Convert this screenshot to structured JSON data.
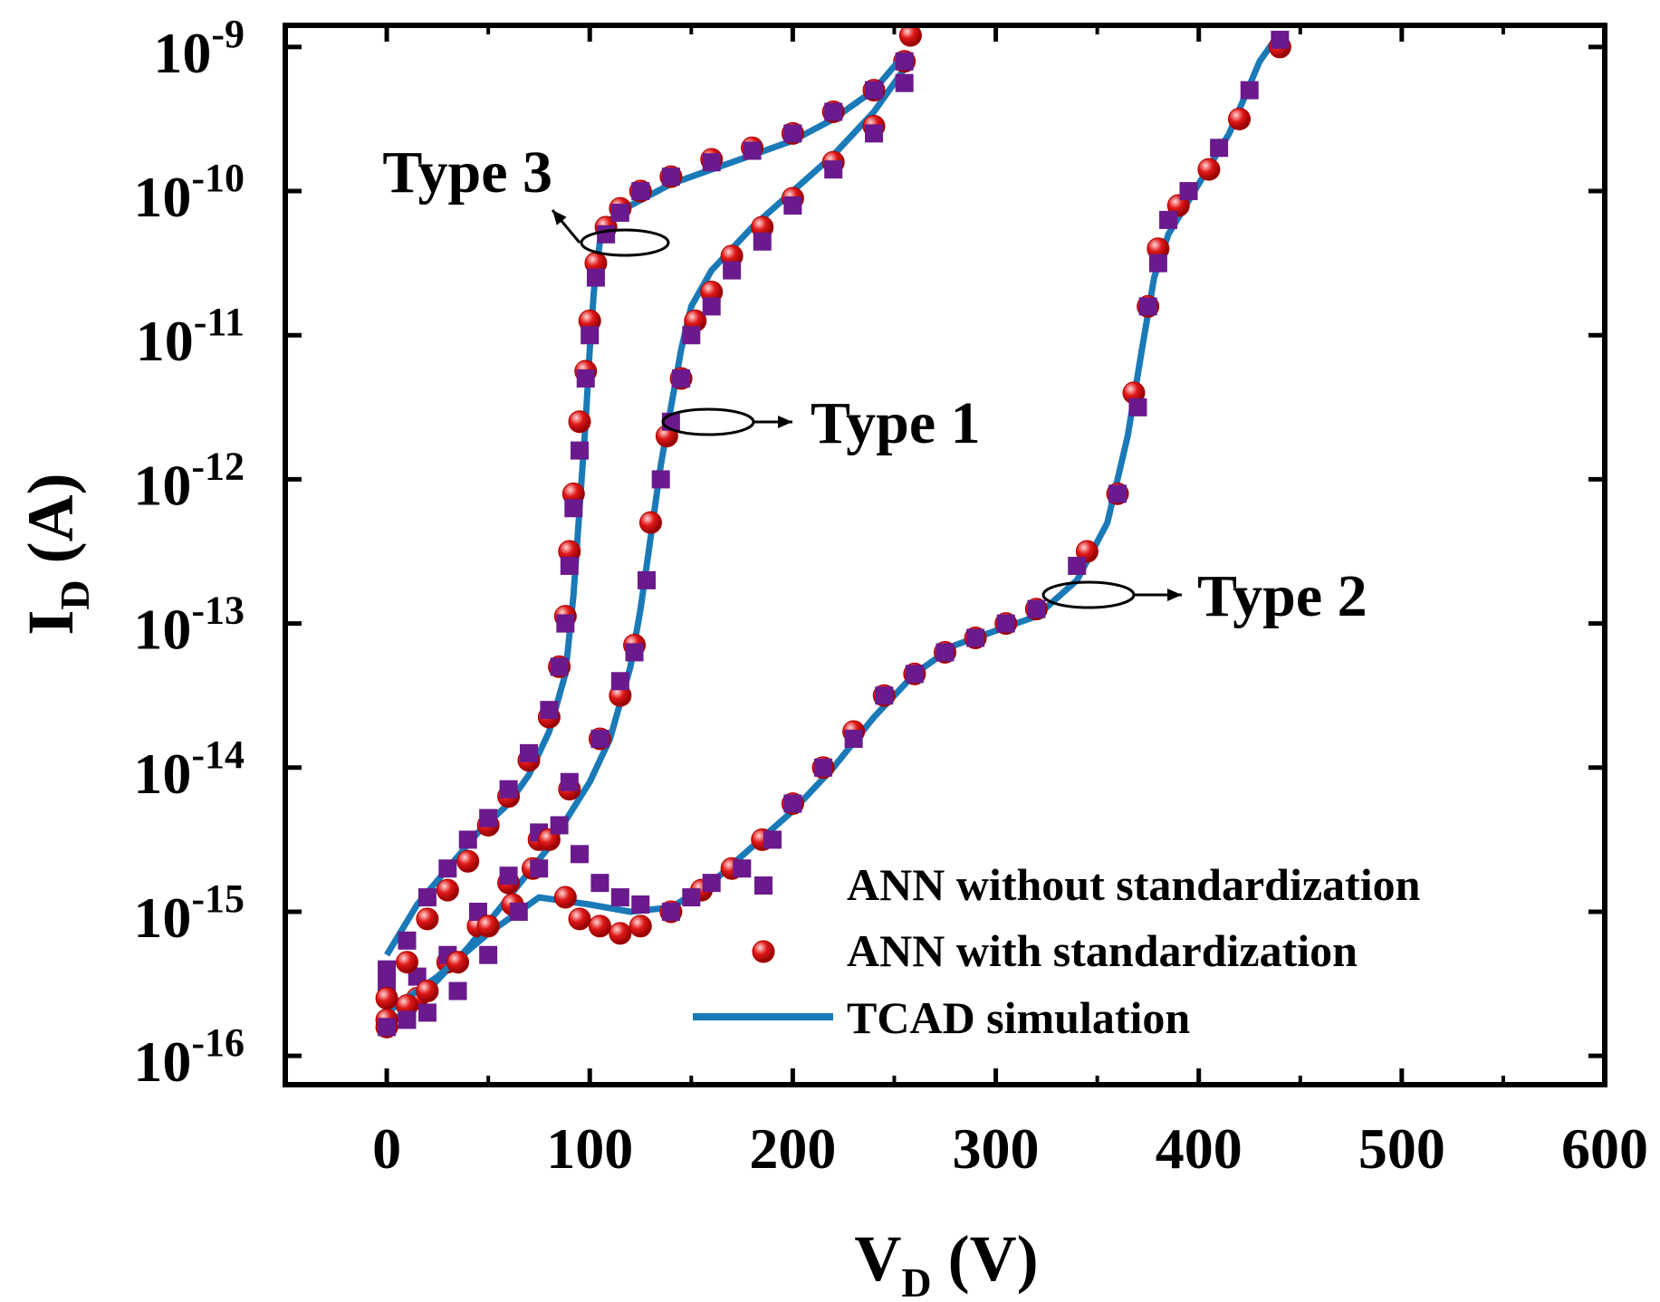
{
  "chart_data": {
    "type": "scatter",
    "title": "",
    "xlabel": {
      "main": "V",
      "sub": "D",
      "unit": " (V)"
    },
    "ylabel": {
      "main": "I",
      "sub": "D",
      "unit": " (A)"
    },
    "xlim": [
      -50,
      600
    ],
    "ylim_log10": [
      -16.2,
      -8.85
    ],
    "yscale": "log",
    "grid": false,
    "legend_position": "bottom-right",
    "x_ticks": [
      0,
      100,
      200,
      300,
      400,
      500,
      600
    ],
    "x_tick_labels": [
      "0",
      "100",
      "200",
      "300",
      "400",
      "500",
      "600"
    ],
    "y_ticks": [
      {
        "exp": -16,
        "base": "10",
        "sup": "-16"
      },
      {
        "exp": -15,
        "base": "10",
        "sup": "-15"
      },
      {
        "exp": -14,
        "base": "10",
        "sup": "-14"
      },
      {
        "exp": -13,
        "base": "10",
        "sup": "-13"
      },
      {
        "exp": -12,
        "base": "10",
        "sup": "-12"
      },
      {
        "exp": -11,
        "base": "10",
        "sup": "-11"
      },
      {
        "exp": -10,
        "base": "10",
        "sup": "-10"
      },
      {
        "exp": -9,
        "base": "10",
        "sup": "-9"
      }
    ],
    "colors": {
      "ann_without": "#6a1a8c",
      "ann_with": "#e01818",
      "tcad": "#1a7ab8"
    },
    "legend": [
      {
        "key": "ann_without",
        "label": "ANN without standardization",
        "marker": "square"
      },
      {
        "key": "ann_with",
        "label": "ANN with standardization",
        "marker": "circle"
      },
      {
        "key": "tcad",
        "label": "TCAD simulation",
        "marker": "line"
      }
    ],
    "annotations": [
      {
        "label": "Type 3",
        "target": [
          118,
          -10.2
        ]
      },
      {
        "label": "Type 1",
        "target": [
          150,
          -11.55
        ]
      },
      {
        "label": "Type 2",
        "target": [
          345,
          -12.9
        ]
      }
    ],
    "series": [
      {
        "name": "Type 1",
        "tcad": [
          [
            0,
            -15.8
          ],
          [
            20,
            -15.55
          ],
          [
            40,
            -15.25
          ],
          [
            60,
            -14.9
          ],
          [
            80,
            -14.55
          ],
          [
            100,
            -14.1
          ],
          [
            110,
            -13.8
          ],
          [
            120,
            -13.3
          ],
          [
            125,
            -12.9
          ],
          [
            130,
            -12.4
          ],
          [
            135,
            -11.9
          ],
          [
            140,
            -11.5
          ],
          [
            145,
            -11.1
          ],
          [
            150,
            -10.8
          ],
          [
            160,
            -10.55
          ],
          [
            180,
            -10.25
          ],
          [
            200,
            -10.0
          ],
          [
            220,
            -9.75
          ],
          [
            240,
            -9.45
          ],
          [
            255,
            -9.15
          ]
        ],
        "ann_without": [
          [
            0,
            -15.5
          ],
          [
            15,
            -15.45
          ],
          [
            30,
            -15.3
          ],
          [
            45,
            -15.0
          ],
          [
            60,
            -14.75
          ],
          [
            75,
            -14.45
          ],
          [
            90,
            -14.1
          ],
          [
            105,
            -13.8
          ],
          [
            115,
            -13.4
          ],
          [
            122,
            -13.2
          ],
          [
            128,
            -12.7
          ],
          [
            135,
            -12.0
          ],
          [
            140,
            -11.6
          ],
          [
            145,
            -11.3
          ],
          [
            150,
            -11.0
          ],
          [
            160,
            -10.8
          ],
          [
            170,
            -10.55
          ],
          [
            185,
            -10.35
          ],
          [
            200,
            -10.1
          ],
          [
            220,
            -9.85
          ],
          [
            240,
            -9.6
          ],
          [
            255,
            -9.25
          ]
        ],
        "ann_with": [
          [
            0,
            -15.8
          ],
          [
            15,
            -15.6
          ],
          [
            30,
            -15.35
          ],
          [
            45,
            -15.1
          ],
          [
            60,
            -14.8
          ],
          [
            75,
            -14.5
          ],
          [
            90,
            -14.15
          ],
          [
            105,
            -13.8
          ],
          [
            115,
            -13.5
          ],
          [
            122,
            -13.15
          ],
          [
            130,
            -12.3
          ],
          [
            138,
            -11.7
          ],
          [
            145,
            -11.3
          ],
          [
            152,
            -10.9
          ],
          [
            160,
            -10.7
          ],
          [
            170,
            -10.45
          ],
          [
            185,
            -10.25
          ],
          [
            200,
            -10.05
          ],
          [
            220,
            -9.8
          ],
          [
            240,
            -9.55
          ],
          [
            255,
            -9.1
          ]
        ]
      },
      {
        "name": "Type 2",
        "tcad": [
          [
            0,
            -15.7
          ],
          [
            25,
            -15.45
          ],
          [
            50,
            -15.15
          ],
          [
            75,
            -14.9
          ],
          [
            100,
            -14.95
          ],
          [
            120,
            -15.0
          ],
          [
            140,
            -14.97
          ],
          [
            160,
            -14.8
          ],
          [
            180,
            -14.55
          ],
          [
            200,
            -14.3
          ],
          [
            220,
            -14.0
          ],
          [
            240,
            -13.65
          ],
          [
            260,
            -13.35
          ],
          [
            280,
            -13.15
          ],
          [
            300,
            -13.05
          ],
          [
            320,
            -12.95
          ],
          [
            340,
            -12.7
          ],
          [
            355,
            -12.3
          ],
          [
            365,
            -11.7
          ],
          [
            372,
            -11.1
          ],
          [
            378,
            -10.6
          ],
          [
            385,
            -10.3
          ],
          [
            400,
            -9.95
          ],
          [
            415,
            -9.6
          ],
          [
            430,
            -9.1
          ],
          [
            440,
            -8.9
          ]
        ],
        "ann_without": [
          [
            0,
            -15.8
          ],
          [
            10,
            -15.75
          ],
          [
            20,
            -15.7
          ],
          [
            35,
            -15.55
          ],
          [
            50,
            -15.3
          ],
          [
            65,
            -15.0
          ],
          [
            75,
            -14.7
          ],
          [
            85,
            -14.4
          ],
          [
            95,
            -14.6
          ],
          [
            105,
            -14.8
          ],
          [
            115,
            -14.9
          ],
          [
            125,
            -14.95
          ],
          [
            140,
            -15.0
          ],
          [
            150,
            -14.9
          ],
          [
            160,
            -14.8
          ],
          [
            175,
            -14.7
          ],
          [
            190,
            -14.5
          ],
          [
            200,
            -14.25
          ],
          [
            215,
            -14.0
          ],
          [
            230,
            -13.8
          ],
          [
            245,
            -13.5
          ],
          [
            260,
            -13.35
          ],
          [
            275,
            -13.2
          ],
          [
            290,
            -13.1
          ],
          [
            305,
            -13.0
          ],
          [
            320,
            -12.9
          ],
          [
            340,
            -12.6
          ],
          [
            360,
            -12.1
          ],
          [
            370,
            -11.5
          ],
          [
            375,
            -10.8
          ],
          [
            380,
            -10.5
          ],
          [
            385,
            -10.2
          ],
          [
            395,
            -10.0
          ],
          [
            410,
            -9.7
          ],
          [
            425,
            -9.3
          ],
          [
            440,
            -8.95
          ]
        ],
        "ann_with": [
          [
            0,
            -15.75
          ],
          [
            10,
            -15.65
          ],
          [
            20,
            -15.55
          ],
          [
            35,
            -15.35
          ],
          [
            50,
            -15.1
          ],
          [
            62,
            -14.95
          ],
          [
            72,
            -14.7
          ],
          [
            80,
            -14.5
          ],
          [
            88,
            -14.9
          ],
          [
            95,
            -15.05
          ],
          [
            105,
            -15.1
          ],
          [
            115,
            -15.15
          ],
          [
            125,
            -15.1
          ],
          [
            140,
            -15.0
          ],
          [
            155,
            -14.85
          ],
          [
            170,
            -14.7
          ],
          [
            185,
            -14.5
          ],
          [
            200,
            -14.25
          ],
          [
            215,
            -14.0
          ],
          [
            230,
            -13.75
          ],
          [
            245,
            -13.5
          ],
          [
            260,
            -13.35
          ],
          [
            275,
            -13.2
          ],
          [
            290,
            -13.1
          ],
          [
            305,
            -13.0
          ],
          [
            320,
            -12.9
          ],
          [
            345,
            -12.5
          ],
          [
            360,
            -12.1
          ],
          [
            368,
            -11.4
          ],
          [
            375,
            -10.8
          ],
          [
            380,
            -10.4
          ],
          [
            390,
            -10.1
          ],
          [
            405,
            -9.85
          ],
          [
            420,
            -9.5
          ],
          [
            440,
            -9.0
          ]
        ]
      },
      {
        "name": "Type 3",
        "tcad": [
          [
            0,
            -15.3
          ],
          [
            15,
            -14.95
          ],
          [
            30,
            -14.7
          ],
          [
            45,
            -14.45
          ],
          [
            60,
            -14.25
          ],
          [
            70,
            -14.05
          ],
          [
            80,
            -13.75
          ],
          [
            88,
            -13.35
          ],
          [
            92,
            -12.8
          ],
          [
            95,
            -12.2
          ],
          [
            98,
            -11.6
          ],
          [
            100,
            -11.1
          ],
          [
            102,
            -10.7
          ],
          [
            105,
            -10.35
          ],
          [
            110,
            -10.2
          ],
          [
            120,
            -10.1
          ],
          [
            140,
            -9.95
          ],
          [
            160,
            -9.85
          ],
          [
            180,
            -9.75
          ],
          [
            200,
            -9.65
          ],
          [
            220,
            -9.5
          ],
          [
            240,
            -9.3
          ],
          [
            255,
            -9.05
          ]
        ],
        "ann_without": [
          [
            0,
            -15.4
          ],
          [
            10,
            -15.2
          ],
          [
            20,
            -14.9
          ],
          [
            30,
            -14.7
          ],
          [
            40,
            -14.5
          ],
          [
            50,
            -14.35
          ],
          [
            60,
            -14.15
          ],
          [
            70,
            -13.9
          ],
          [
            80,
            -13.6
          ],
          [
            85,
            -13.3
          ],
          [
            88,
            -13.0
          ],
          [
            90,
            -12.6
          ],
          [
            92,
            -12.2
          ],
          [
            95,
            -11.8
          ],
          [
            98,
            -11.3
          ],
          [
            100,
            -11.0
          ],
          [
            103,
            -10.6
          ],
          [
            108,
            -10.3
          ],
          [
            115,
            -10.15
          ],
          [
            125,
            -10.0
          ],
          [
            140,
            -9.9
          ],
          [
            160,
            -9.8
          ],
          [
            180,
            -9.72
          ],
          [
            200,
            -9.6
          ],
          [
            220,
            -9.45
          ],
          [
            240,
            -9.3
          ],
          [
            255,
            -9.1
          ]
        ],
        "ann_with": [
          [
            0,
            -15.6
          ],
          [
            10,
            -15.35
          ],
          [
            20,
            -15.05
          ],
          [
            30,
            -14.85
          ],
          [
            40,
            -14.65
          ],
          [
            50,
            -14.4
          ],
          [
            60,
            -14.2
          ],
          [
            70,
            -13.95
          ],
          [
            80,
            -13.65
          ],
          [
            85,
            -13.3
          ],
          [
            88,
            -12.95
          ],
          [
            90,
            -12.5
          ],
          [
            92,
            -12.1
          ],
          [
            95,
            -11.6
          ],
          [
            98,
            -11.25
          ],
          [
            100,
            -10.9
          ],
          [
            103,
            -10.5
          ],
          [
            108,
            -10.25
          ],
          [
            115,
            -10.12
          ],
          [
            125,
            -10.0
          ],
          [
            140,
            -9.9
          ],
          [
            160,
            -9.78
          ],
          [
            180,
            -9.7
          ],
          [
            200,
            -9.6
          ],
          [
            220,
            -9.45
          ],
          [
            240,
            -9.3
          ],
          [
            258,
            -8.92
          ]
        ]
      }
    ]
  }
}
